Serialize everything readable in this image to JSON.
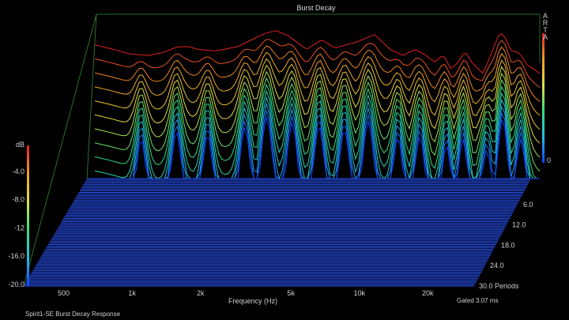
{
  "chart_data": {
    "type": "waterfall",
    "title": "Burst Decay",
    "xlabel": "Frequency (Hz)",
    "x_ticks": [
      "500",
      "1k",
      "2k",
      "5k",
      "10k",
      "20k"
    ],
    "xlim": [
      350,
      32000
    ],
    "x_scale": "log",
    "z_axis": {
      "label": "Periods",
      "ticks": [
        "6.0",
        "12.0",
        "18.0",
        "24.0",
        "30.0 Periods"
      ],
      "range": [
        0,
        30
      ]
    },
    "y_axis": {
      "label": "dB",
      "ticks": [
        "-4.0",
        "-8.0",
        "-12",
        "-16.0",
        "-20.0"
      ],
      "range": [
        -20,
        0
      ]
    },
    "color_scale": {
      "label": "dB",
      "top_value": "0",
      "colors": [
        "#1040ff",
        "#20c0e0",
        "#30e080",
        "#e0e040",
        "#f0a020",
        "#e02020"
      ]
    },
    "slice_periods": [
      0,
      1,
      2,
      3,
      4,
      5,
      6,
      7,
      8,
      9,
      10,
      11,
      12,
      13
    ],
    "front_response_db": [
      [
        350,
        -2.2
      ],
      [
        400,
        -2.6
      ],
      [
        500,
        -3.4
      ],
      [
        600,
        -3.6
      ],
      [
        700,
        -3.2
      ],
      [
        800,
        -2.5
      ],
      [
        900,
        -2.4
      ],
      [
        1000,
        -2.8
      ],
      [
        1200,
        -3.0
      ],
      [
        1500,
        -2.4
      ],
      [
        1800,
        -1.2
      ],
      [
        2000,
        -0.6
      ],
      [
        2200,
        -0.3
      ],
      [
        2500,
        -1.0
      ],
      [
        3000,
        -2.8
      ],
      [
        3500,
        -1.5
      ],
      [
        4000,
        -2.6
      ],
      [
        5000,
        -1.8
      ],
      [
        6000,
        -0.8
      ],
      [
        7000,
        -2.8
      ],
      [
        8000,
        -3.6
      ],
      [
        9000,
        -2.8
      ],
      [
        10000,
        -3.5
      ],
      [
        11000,
        -4.5
      ],
      [
        12000,
        -3.5
      ],
      [
        13000,
        -5.4
      ],
      [
        14000,
        -4.5
      ],
      [
        15000,
        -3.0
      ],
      [
        16000,
        -4.5
      ],
      [
        18000,
        -6.0
      ],
      [
        20000,
        -2.6
      ],
      [
        21000,
        -1.0
      ],
      [
        22000,
        -0.6
      ],
      [
        24000,
        -3.0
      ],
      [
        26000,
        -3.2
      ],
      [
        28000,
        -4.8
      ],
      [
        30000,
        -5.4
      ],
      [
        32000,
        -6.0
      ]
    ],
    "decay_hotspots_hz": [
      560,
      800,
      1100,
      1600,
      2000,
      2600,
      3400,
      4400,
      5600,
      7600,
      9500,
      12500,
      14600,
      18500,
      22000,
      26500
    ],
    "ranges_note": "",
    "brand": "ARTA",
    "subtitle_left": "Spirit1-SE Burst Decay Response",
    "subtitle_right": "Gated 3.07 ms"
  }
}
